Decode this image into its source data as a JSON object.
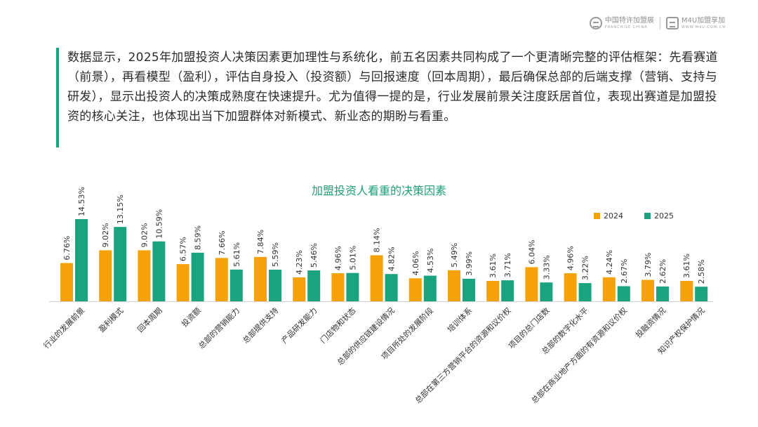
{
  "branding": {
    "logo1": {
      "cn": "中国特许加盟展",
      "en": "FRANCHISE CHINA",
      "icon": "franchise-china-logo-icon"
    },
    "logo2": {
      "cn": "M4U加盟享加",
      "en": "WWW.M4U.COM.CN",
      "icon": "m4u-logo-icon"
    }
  },
  "intro": {
    "text": "数据显示，2025年加盟投资人决策因素更加理性与系统化，前五名因素共同构成了一个更清晰完整的评估框架：先看赛道（前景），再看模型（盈利），评估自身投入（投资额）与回报速度（回本周期），最后确保总部的后端支撑（营销、支持与研发），显示出投资人的决策成熟度在快速提升。尤为值得一提的是，行业发展前景关注度跃居首位，表现出赛道是加盟投资的核心关注，也体现出当下加盟群体对新模式、新业态的期盼与看重。"
  },
  "colors": {
    "s2024": "#f5a20a",
    "s2025": "#1aa37f",
    "title": "#1f9e78",
    "accent": "#1aa37f"
  },
  "chart_data": {
    "type": "bar",
    "title": "加盟投资人看重的决策因素",
    "xlabel": "",
    "ylabel": "",
    "ylim": [
      0,
      16
    ],
    "grid": false,
    "legend_position": "top-right",
    "categories": [
      "行业的发展前景",
      "盈利模式",
      "回本周期",
      "投资额",
      "总部的营销能力",
      "总部提供支持",
      "产品研发能力",
      "门店物和状态",
      "总部的供应链建设情况",
      "项目所处的发展阶段",
      "培训体系",
      "总部在第三方营销平台的资源和议价权",
      "项目的总门店数",
      "总部的数字化水平",
      "总部在商业地产方面的有资源和议价权",
      "投融资情况",
      "知识产权保护情况"
    ],
    "series": [
      {
        "name": "2024",
        "values": [
          6.76,
          9.02,
          9.02,
          6.57,
          7.66,
          7.84,
          4.23,
          4.96,
          8.14,
          4.06,
          5.49,
          3.61,
          6.04,
          4.96,
          4.24,
          3.79,
          3.61
        ],
        "labels": [
          "6.76%",
          "9.02%",
          "9.02%",
          "6.57%",
          "7.66%",
          "7.84%",
          "4.23%",
          "4.96%",
          "8.14%",
          "4.06%",
          "5.49%",
          "3.61%",
          "6.04%",
          "4.96%",
          "4.24%",
          "3.79%",
          "3.61%"
        ]
      },
      {
        "name": "2025",
        "values": [
          14.53,
          13.15,
          10.59,
          8.59,
          5.61,
          5.59,
          5.46,
          5.01,
          4.82,
          4.53,
          3.99,
          3.71,
          3.33,
          3.22,
          2.67,
          2.62,
          2.58
        ],
        "labels": [
          "14.53%",
          "13.15%",
          "10.59%",
          "8.59%",
          "5.61%",
          "5.59%",
          "5.46%",
          "5.01%",
          "4.82%",
          "4.53%",
          "3.99%",
          "3.71%",
          "3.33%",
          "3.22%",
          "2.67%",
          "2.62%",
          "2.58%"
        ]
      }
    ]
  }
}
